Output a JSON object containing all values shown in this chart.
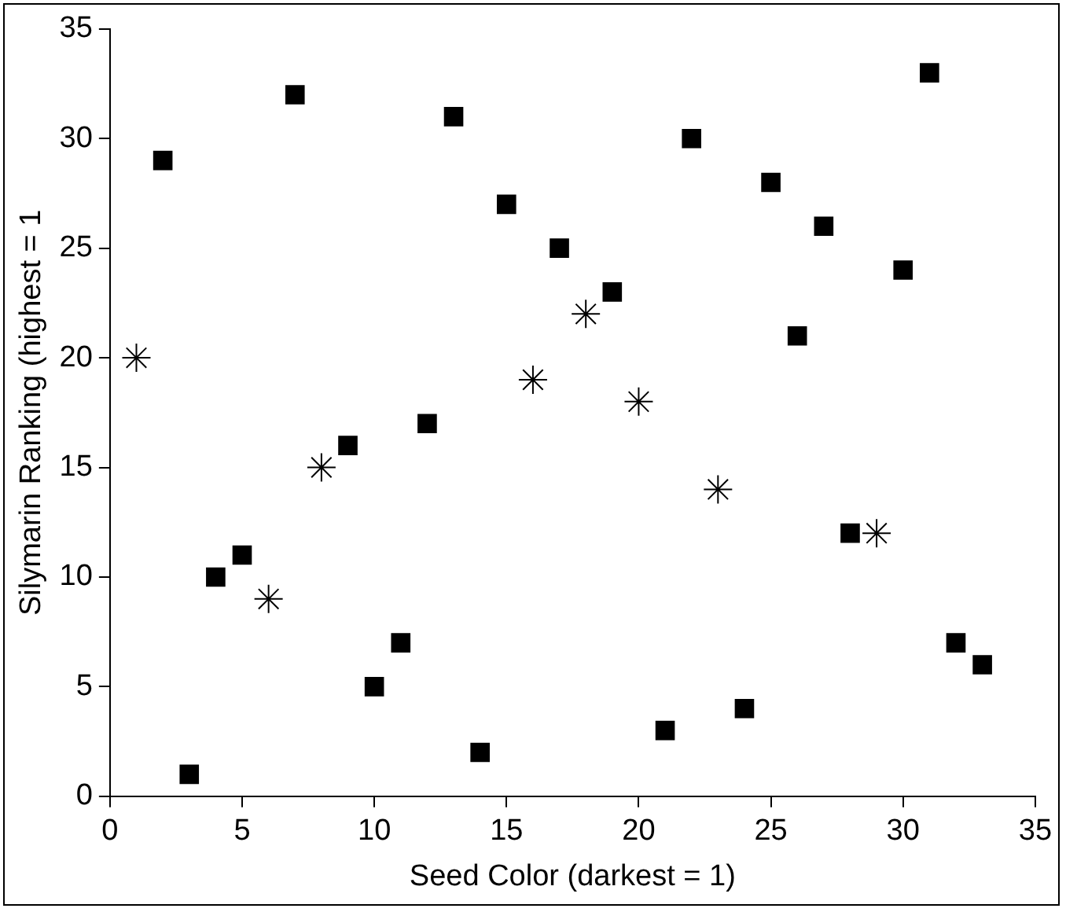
{
  "chart_data": {
    "type": "scatter",
    "xlabel": "Seed Color (darkest = 1)",
    "ylabel": "Silymarin Ranking (highest = 1",
    "xlim": [
      0,
      35
    ],
    "xticks": [
      0,
      5,
      10,
      15,
      20,
      25,
      30,
      35
    ],
    "ylim": [
      0,
      35
    ],
    "yticks": [
      0,
      5,
      10,
      15,
      20,
      25,
      30,
      35
    ],
    "grid": false,
    "legend": false,
    "series": [
      {
        "color": "#000000",
        "marker": "square",
        "x": [
          2,
          3,
          4,
          5,
          7,
          9,
          10,
          11,
          12,
          13,
          14,
          15,
          17,
          19,
          21,
          22,
          24,
          25,
          26,
          27,
          28,
          30,
          31,
          32,
          33
        ],
        "values": [
          29,
          1,
          10,
          11,
          32,
          16,
          5,
          7,
          17,
          31,
          2,
          27,
          25,
          23,
          3,
          30,
          4,
          28,
          21,
          26,
          12,
          24,
          33,
          7,
          6
        ]
      },
      {
        "color": "#000000",
        "marker": "cross",
        "x": [
          1,
          6,
          8,
          16,
          18,
          20,
          23,
          29
        ],
        "values": [
          20,
          9,
          15,
          19,
          22,
          18,
          14,
          12
        ]
      }
    ]
  }
}
